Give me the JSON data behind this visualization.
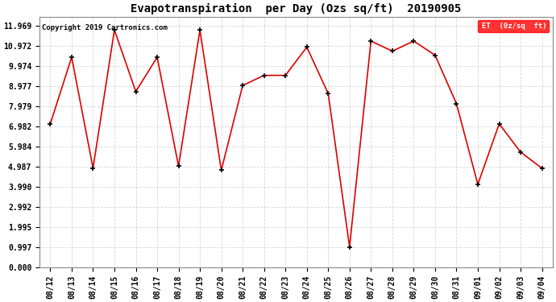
{
  "title": "Evapotranspiration  per Day (Ozs sq/ft)  20190905",
  "copyright": "Copyright 2019 Cartronics.com",
  "legend_label": "ET  (0z/sq  ft)",
  "x_labels": [
    "08/12",
    "08/13",
    "08/14",
    "08/15",
    "08/16",
    "08/17",
    "08/18",
    "08/19",
    "08/20",
    "08/21",
    "08/22",
    "08/23",
    "08/24",
    "08/25",
    "08/26",
    "08/27",
    "08/28",
    "08/29",
    "08/30",
    "08/31",
    "09/01",
    "09/02",
    "09/03",
    "09/04"
  ],
  "y_values": [
    7.1,
    10.4,
    4.9,
    11.75,
    8.7,
    10.4,
    5.0,
    11.75,
    4.8,
    9.0,
    9.5,
    9.5,
    10.9,
    8.6,
    1.0,
    11.2,
    10.7,
    11.2,
    10.5,
    8.1,
    4.1,
    7.1,
    5.7,
    4.9
  ],
  "line_color": "#dd0000",
  "marker": "+",
  "marker_size": 5,
  "marker_edge_width": 1.2,
  "line_width": 1.2,
  "background_color": "#ffffff",
  "plot_bg_color": "#ffffff",
  "grid_color": "#cccccc",
  "title_fontsize": 10,
  "tick_fontsize": 7,
  "copyright_fontsize": 6.5,
  "ylim": [
    0,
    12.4
  ],
  "yticks": [
    0.0,
    0.997,
    1.995,
    2.992,
    3.99,
    4.987,
    5.984,
    6.982,
    7.979,
    8.977,
    9.974,
    10.972,
    11.969
  ],
  "ytick_labels": [
    "0.000",
    "0.997",
    "1.995",
    "2.992",
    "3.990",
    "4.987",
    "5.984",
    "6.982",
    "7.979",
    "8.977",
    "9.974",
    "10.972",
    "11.969"
  ]
}
